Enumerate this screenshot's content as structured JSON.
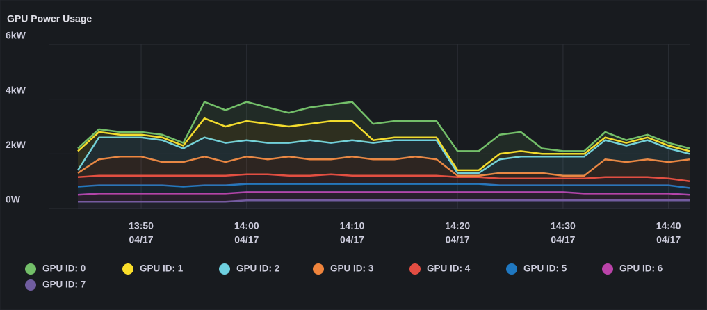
{
  "chart_data": {
    "type": "stacked-line",
    "title": "GPU Power Usage",
    "x": [
      "13:44",
      "13:46",
      "13:48",
      "13:50",
      "13:52",
      "13:54",
      "13:56",
      "13:58",
      "14:00",
      "14:02",
      "14:04",
      "14:06",
      "14:08",
      "14:10",
      "14:12",
      "14:14",
      "14:16",
      "14:18",
      "14:20",
      "14:22",
      "14:24",
      "14:26",
      "14:28",
      "14:30",
      "14:32",
      "14:34",
      "14:36",
      "14:38",
      "14:40",
      "14:42"
    ],
    "series": [
      {
        "name": "GPU ID: 0",
        "color": "#73bf69",
        "values": [
          100,
          100,
          100,
          100,
          100,
          100,
          600,
          600,
          700,
          600,
          500,
          600,
          600,
          700,
          600,
          600,
          600,
          600,
          700,
          700,
          700,
          700,
          200,
          100,
          100,
          200,
          100,
          100,
          100,
          100
        ]
      },
      {
        "name": "GPU ID: 1",
        "color": "#fade2a",
        "values": [
          700,
          200,
          100,
          100,
          100,
          100,
          700,
          600,
          700,
          700,
          600,
          600,
          800,
          700,
          100,
          100,
          100,
          100,
          100,
          100,
          200,
          200,
          100,
          100,
          100,
          100,
          100,
          100,
          100,
          100
        ]
      },
      {
        "name": "GPU ID: 2",
        "color": "#6ed0e0",
        "values": [
          100,
          800,
          700,
          700,
          800,
          500,
          700,
          700,
          600,
          600,
          500,
          700,
          600,
          600,
          600,
          700,
          600,
          700,
          100,
          100,
          500,
          600,
          600,
          700,
          700,
          700,
          600,
          700,
          500,
          200
        ]
      },
      {
        "name": "GPU ID: 3",
        "color": "#ef843c",
        "values": [
          150,
          600,
          700,
          700,
          500,
          500,
          700,
          500,
          650,
          550,
          700,
          600,
          550,
          700,
          600,
          600,
          700,
          600,
          50,
          50,
          200,
          200,
          200,
          100,
          100,
          650,
          550,
          650,
          600,
          800
        ]
      },
      {
        "name": "GPU ID: 4",
        "color": "#e24d42",
        "values": [
          350,
          350,
          350,
          350,
          350,
          400,
          350,
          350,
          350,
          350,
          300,
          300,
          350,
          300,
          300,
          300,
          300,
          300,
          250,
          250,
          250,
          250,
          250,
          250,
          250,
          300,
          300,
          300,
          250,
          250
        ]
      },
      {
        "name": "GPU ID: 5",
        "color": "#1f78c1",
        "values": [
          300,
          300,
          300,
          300,
          300,
          250,
          300,
          300,
          300,
          300,
          300,
          300,
          300,
          300,
          300,
          300,
          300,
          300,
          300,
          300,
          250,
          250,
          250,
          250,
          300,
          300,
          300,
          300,
          300,
          250
        ]
      },
      {
        "name": "GPU ID: 6",
        "color": "#ba43a9",
        "values": [
          250,
          300,
          300,
          300,
          300,
          300,
          300,
          300,
          300,
          300,
          300,
          300,
          300,
          300,
          300,
          300,
          300,
          300,
          300,
          300,
          300,
          300,
          300,
          300,
          250,
          250,
          250,
          250,
          250,
          200
        ]
      },
      {
        "name": "GPU ID: 7",
        "color": "#705da0",
        "values": [
          250,
          250,
          250,
          250,
          250,
          250,
          250,
          250,
          300,
          300,
          300,
          300,
          300,
          300,
          300,
          300,
          300,
          300,
          300,
          300,
          300,
          300,
          300,
          300,
          300,
          300,
          300,
          300,
          300,
          300
        ]
      }
    ],
    "ylim": [
      0,
      6000
    ],
    "yticks": [
      {
        "value": 0,
        "label": "0W"
      },
      {
        "value": 2000,
        "label": "2kW"
      },
      {
        "value": 4000,
        "label": "4kW"
      },
      {
        "value": 6000,
        "label": "6kW"
      }
    ],
    "xticks": [
      {
        "value": "13:50",
        "label": "13:50",
        "date": "04/17"
      },
      {
        "value": "14:00",
        "label": "14:00",
        "date": "04/17"
      },
      {
        "value": "14:10",
        "label": "14:10",
        "date": "04/17"
      },
      {
        "value": "14:20",
        "label": "14:20",
        "date": "04/17"
      },
      {
        "value": "14:30",
        "label": "14:30",
        "date": "04/17"
      },
      {
        "value": "14:40",
        "label": "14:40",
        "date": "04/17"
      }
    ],
    "stacked": true,
    "grid": true
  }
}
